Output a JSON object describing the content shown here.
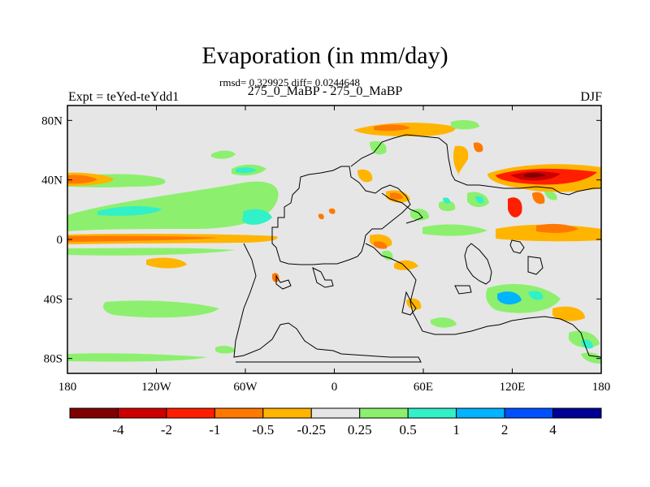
{
  "title": "Evaporation (in mm/day)",
  "stats_line": "rmsd= 0.329925 diff= 0.0244648",
  "subtitle": "275_0_MaBP - 275_0_MaBP",
  "left_label": "Expt = teYed-teYdd1",
  "right_label": "DJF",
  "map": {
    "background_color": "#e6e6e6",
    "lon_range": [
      -180,
      180
    ],
    "lat_range": [
      -90,
      90
    ],
    "x_ticks": [
      "180",
      "120W",
      "60W",
      "0",
      "60E",
      "120E",
      "180"
    ],
    "y_ticks": [
      "80N",
      "40N",
      "0",
      "40S",
      "80S"
    ]
  },
  "colorbar": {
    "colors": [
      "#7f0000",
      "#cc0000",
      "#ff1e00",
      "#ff7800",
      "#ffb400",
      "#e6e6e6",
      "#8cf06e",
      "#32f0c8",
      "#00b4ff",
      "#0050ff",
      "#000096"
    ],
    "labels": [
      "-4",
      "-2",
      "-1",
      "-0.5",
      "-0.25",
      "0.25",
      "0.5",
      "1",
      "2",
      "4"
    ]
  }
}
